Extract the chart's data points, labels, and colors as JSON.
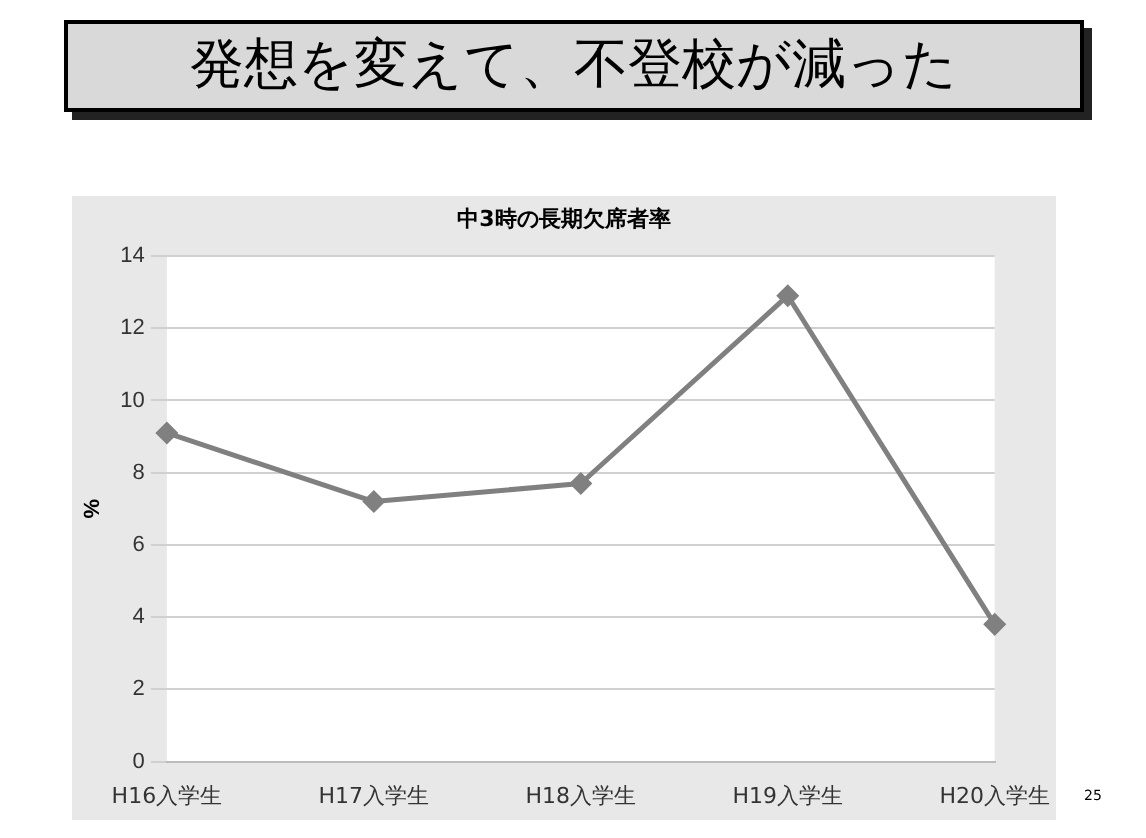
{
  "chart_data": {
    "type": "line",
    "title": "発想を変えて、不登校が減った",
    "subtitle": "中3時の長期欠席者率",
    "ylabel": "%",
    "categories": [
      "H16入学生",
      "H17入学生",
      "H18入学生",
      "H19入学生",
      "H20入学生"
    ],
    "series": [
      {
        "color": "#808080",
        "values": [
          9.1,
          7.2,
          7.7,
          12.9,
          3.8
        ]
      }
    ],
    "ylim": [
      0,
      14
    ],
    "yticks": [
      0,
      2,
      4,
      6,
      8,
      10,
      12,
      14
    ],
    "grid": "y",
    "legend": false,
    "marker": "diamond",
    "line_style": "solid",
    "annotations": [
      "25"
    ]
  }
}
